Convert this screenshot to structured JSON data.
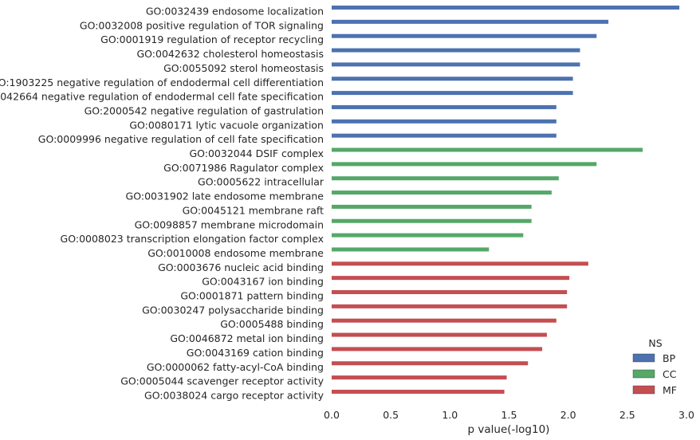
{
  "chart_data": {
    "type": "bar",
    "orientation": "horizontal",
    "title": "",
    "xlabel": "p value(-log10)",
    "ylabel": "",
    "xlim": [
      0,
      3.0
    ],
    "xticks": [
      "0.0",
      "0.5",
      "1.0",
      "1.5",
      "2.0",
      "2.5",
      "3.0"
    ],
    "grid": false,
    "legend": {
      "title": "NS",
      "position": "bottom-right",
      "entries": [
        {
          "name": "BP",
          "color": "#4c72b0"
        },
        {
          "name": "CC",
          "color": "#55a868"
        },
        {
          "name": "MF",
          "color": "#c44e52"
        }
      ]
    },
    "bars": [
      {
        "label": "GO:0032439 endosome localization",
        "value": 2.94,
        "ns": "BP"
      },
      {
        "label": "GO:0032008 positive regulation of TOR signaling",
        "value": 2.34,
        "ns": "BP"
      },
      {
        "label": "GO:0001919 regulation of receptor recycling",
        "value": 2.24,
        "ns": "BP"
      },
      {
        "label": "GO:0042632 cholesterol homeostasis",
        "value": 2.1,
        "ns": "BP"
      },
      {
        "label": "GO:0055092 sterol homeostasis",
        "value": 2.1,
        "ns": "BP"
      },
      {
        "label": "GO:1903225 negative regulation of endodermal cell differentiation",
        "value": 2.04,
        "ns": "BP"
      },
      {
        "label": "GO:0042664 negative regulation of endodermal cell fate specification",
        "value": 2.04,
        "ns": "BP"
      },
      {
        "label": "GO:2000542 negative regulation of gastrulation",
        "value": 1.9,
        "ns": "BP"
      },
      {
        "label": "GO:0080171 lytic vacuole organization",
        "value": 1.9,
        "ns": "BP"
      },
      {
        "label": "GO:0009996 negative regulation of cell fate specification",
        "value": 1.9,
        "ns": "BP"
      },
      {
        "label": "GO:0032044 DSIF complex",
        "value": 2.63,
        "ns": "CC"
      },
      {
        "label": "GO:0071986 Ragulator complex",
        "value": 2.24,
        "ns": "CC"
      },
      {
        "label": "GO:0005622 intracellular",
        "value": 1.92,
        "ns": "CC"
      },
      {
        "label": "GO:0031902 late endosome membrane",
        "value": 1.86,
        "ns": "CC"
      },
      {
        "label": "GO:0045121 membrane raft",
        "value": 1.69,
        "ns": "CC"
      },
      {
        "label": "GO:0098857 membrane microdomain",
        "value": 1.69,
        "ns": "CC"
      },
      {
        "label": "GO:0008023 transcription elongation factor complex",
        "value": 1.62,
        "ns": "CC"
      },
      {
        "label": "GO:0010008 endosome membrane",
        "value": 1.33,
        "ns": "CC"
      },
      {
        "label": "GO:0003676 nucleic acid binding",
        "value": 2.17,
        "ns": "MF"
      },
      {
        "label": "GO:0043167 ion binding",
        "value": 2.01,
        "ns": "MF"
      },
      {
        "label": "GO:0001871 pattern binding",
        "value": 1.99,
        "ns": "MF"
      },
      {
        "label": "GO:0030247 polysaccharide binding",
        "value": 1.99,
        "ns": "MF"
      },
      {
        "label": "GO:0005488 binding",
        "value": 1.9,
        "ns": "MF"
      },
      {
        "label": "GO:0046872 metal ion binding",
        "value": 1.82,
        "ns": "MF"
      },
      {
        "label": "GO:0043169 cation binding",
        "value": 1.78,
        "ns": "MF"
      },
      {
        "label": "GO:0000062 fatty-acyl-CoA binding",
        "value": 1.66,
        "ns": "MF"
      },
      {
        "label": "GO:0005044 scavenger receptor activity",
        "value": 1.48,
        "ns": "MF"
      },
      {
        "label": "GO:0038024 cargo receptor activity",
        "value": 1.46,
        "ns": "MF"
      }
    ]
  }
}
